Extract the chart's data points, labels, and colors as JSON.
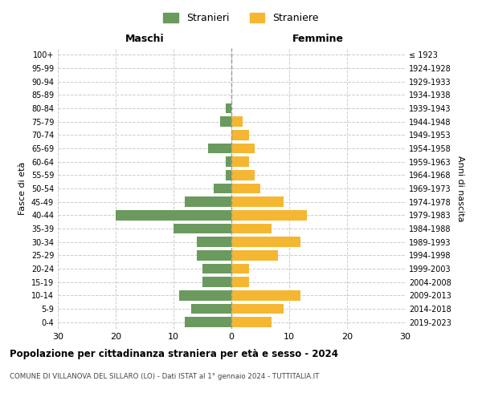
{
  "age_groups": [
    "0-4",
    "5-9",
    "10-14",
    "15-19",
    "20-24",
    "25-29",
    "30-34",
    "35-39",
    "40-44",
    "45-49",
    "50-54",
    "55-59",
    "60-64",
    "65-69",
    "70-74",
    "75-79",
    "80-84",
    "85-89",
    "90-94",
    "95-99",
    "100+"
  ],
  "birth_years": [
    "2019-2023",
    "2014-2018",
    "2009-2013",
    "2004-2008",
    "1999-2003",
    "1994-1998",
    "1989-1993",
    "1984-1988",
    "1979-1983",
    "1974-1978",
    "1969-1973",
    "1964-1968",
    "1959-1963",
    "1954-1958",
    "1949-1953",
    "1944-1948",
    "1939-1943",
    "1934-1938",
    "1929-1933",
    "1924-1928",
    "≤ 1923"
  ],
  "maschi": [
    8,
    7,
    9,
    5,
    5,
    6,
    6,
    10,
    20,
    8,
    3,
    1,
    1,
    4,
    0,
    2,
    1,
    0,
    0,
    0,
    0
  ],
  "femmine": [
    7,
    9,
    12,
    3,
    3,
    8,
    12,
    7,
    13,
    9,
    5,
    4,
    3,
    4,
    3,
    2,
    0,
    0,
    0,
    0,
    0
  ],
  "color_maschi": "#6a9a5e",
  "color_femmine": "#f5b731",
  "title": "Popolazione per cittadinanza straniera per età e sesso - 2024",
  "subtitle": "COMUNE DI VILLANOVA DEL SILLARO (LO) - Dati ISTAT al 1° gennaio 2024 - TUTTITALIA.IT",
  "xlabel_left": "Maschi",
  "xlabel_right": "Femmine",
  "ylabel_left": "Fasce di età",
  "ylabel_right": "Anni di nascita",
  "legend_maschi": "Stranieri",
  "legend_femmine": "Straniere",
  "xlim": 30,
  "background_color": "#ffffff",
  "grid_color": "#cccccc"
}
